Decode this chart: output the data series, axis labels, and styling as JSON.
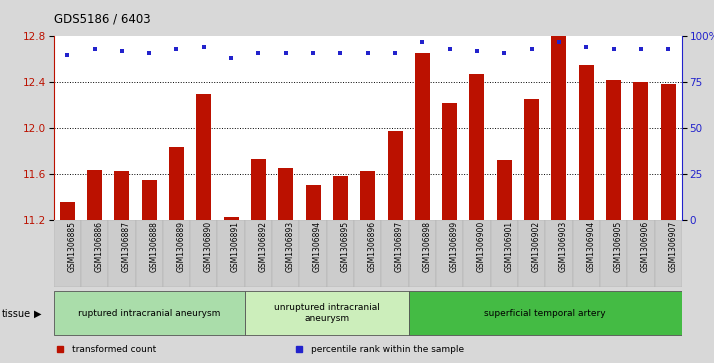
{
  "title": "GDS5186 / 6403",
  "samples": [
    "GSM1306885",
    "GSM1306886",
    "GSM1306887",
    "GSM1306888",
    "GSM1306889",
    "GSM1306890",
    "GSM1306891",
    "GSM1306892",
    "GSM1306893",
    "GSM1306894",
    "GSM1306895",
    "GSM1306896",
    "GSM1306897",
    "GSM1306898",
    "GSM1306899",
    "GSM1306900",
    "GSM1306901",
    "GSM1306902",
    "GSM1306903",
    "GSM1306904",
    "GSM1306905",
    "GSM1306906",
    "GSM1306907"
  ],
  "transformed_count": [
    11.35,
    11.63,
    11.62,
    11.55,
    11.83,
    12.3,
    11.22,
    11.73,
    11.65,
    11.5,
    11.58,
    11.62,
    11.97,
    12.65,
    12.22,
    12.47,
    11.72,
    12.25,
    12.8,
    12.55,
    12.42,
    12.4,
    12.38
  ],
  "percentile_rank": [
    90,
    93,
    92,
    91,
    93,
    94,
    88,
    91,
    91,
    91,
    91,
    91,
    91,
    97,
    93,
    92,
    91,
    93,
    97,
    94,
    93,
    93,
    93
  ],
  "groups": [
    {
      "label": "ruptured intracranial aneurysm",
      "start": 0,
      "end": 7,
      "color": "#aaddaa"
    },
    {
      "label": "unruptured intracranial\naneurysm",
      "start": 7,
      "end": 13,
      "color": "#cceebb"
    },
    {
      "label": "superficial temporal artery",
      "start": 13,
      "end": 23,
      "color": "#44bb44"
    }
  ],
  "bar_color": "#bb1100",
  "dot_color": "#2222cc",
  "ylim_left": [
    11.2,
    12.8
  ],
  "ylim_right": [
    0,
    100
  ],
  "yticks_left": [
    11.2,
    11.6,
    12.0,
    12.4,
    12.8
  ],
  "yticks_right": [
    0,
    25,
    50,
    75,
    100
  ],
  "ytick_labels_right": [
    "0",
    "25",
    "50",
    "75",
    "100%"
  ],
  "grid_values": [
    11.6,
    12.0,
    12.4
  ],
  "bg_color": "#d8d8d8",
  "plot_bg_color": "#ffffff",
  "tissue_label": "tissue",
  "legend_items": [
    {
      "label": "transformed count",
      "color": "#bb1100"
    },
    {
      "label": "percentile rank within the sample",
      "color": "#2222cc"
    }
  ]
}
